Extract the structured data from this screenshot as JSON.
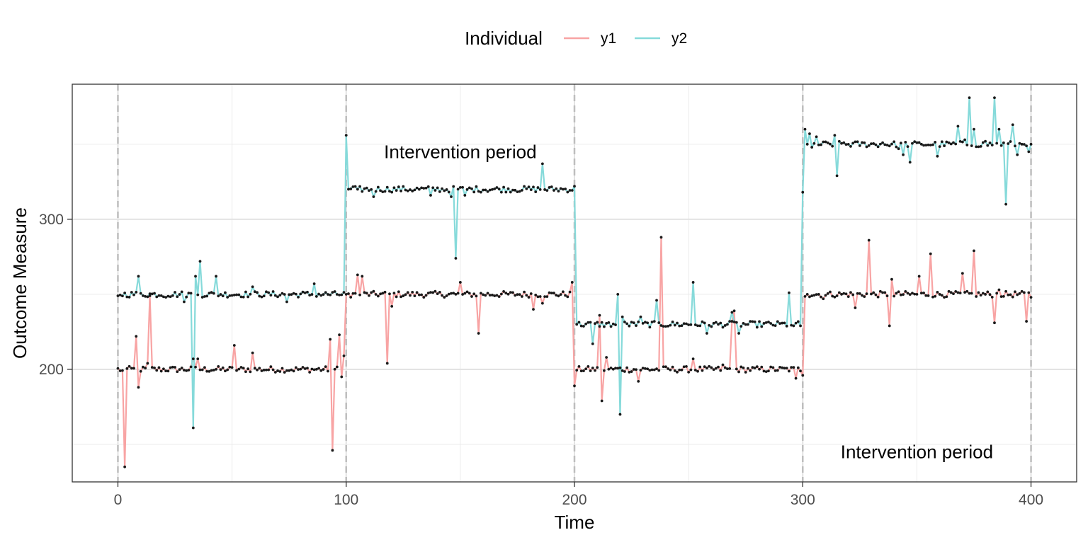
{
  "chart_data": {
    "type": "line",
    "xlabel": "Time",
    "ylabel": "Outcome Measure",
    "xlim": [
      -20,
      420
    ],
    "ylim": [
      125,
      390
    ],
    "x_ticks": [
      0,
      100,
      200,
      300,
      400
    ],
    "y_ticks": [
      200,
      300
    ],
    "grid": true,
    "legend": {
      "title": "Individual",
      "position": "top",
      "entries": [
        {
          "label": "y1",
          "color": "#F8A4A4"
        },
        {
          "label": "y2",
          "color": "#86DADA"
        }
      ]
    },
    "phase_boundaries": [
      0,
      100,
      200,
      300,
      400
    ],
    "annotations": [
      {
        "text": "Intervention period",
        "x": 150,
        "y": 345
      },
      {
        "text": "Intervention period",
        "x": 350,
        "y": 145
      }
    ],
    "phases": [
      {
        "start": 0,
        "end": 100,
        "series": {
          "y1": 200,
          "y2": 250
        }
      },
      {
        "start": 100,
        "end": 200,
        "series": {
          "y1": 250,
          "y2": 320
        }
      },
      {
        "start": 200,
        "end": 300,
        "series": {
          "y1": 200,
          "y2": 230
        }
      },
      {
        "start": 300,
        "end": 400,
        "series": {
          "y1": 250,
          "y2": 350
        }
      }
    ],
    "series": [
      {
        "name": "y1",
        "color": "#F8A4A4",
        "spikes": [
          [
            1,
            199
          ],
          [
            3,
            135
          ],
          [
            8,
            222
          ],
          [
            9,
            188
          ],
          [
            13,
            204
          ],
          [
            14,
            249
          ],
          [
            33,
            207
          ],
          [
            35,
            207
          ],
          [
            51,
            216
          ],
          [
            59,
            211
          ],
          [
            93,
            220
          ],
          [
            94,
            146
          ],
          [
            97,
            223
          ],
          [
            98,
            195
          ],
          [
            99,
            209
          ],
          [
            100,
            250
          ],
          [
            105,
            263
          ],
          [
            107,
            262
          ],
          [
            118,
            204
          ],
          [
            120,
            242
          ],
          [
            148,
            250
          ],
          [
            150,
            258
          ],
          [
            158,
            224
          ],
          [
            182,
            240
          ],
          [
            186,
            244
          ],
          [
            199,
            258
          ],
          [
            200,
            189
          ],
          [
            211,
            236
          ],
          [
            212,
            179
          ],
          [
            214,
            208
          ],
          [
            220,
            201
          ],
          [
            228,
            192
          ],
          [
            238,
            288
          ],
          [
            252,
            207
          ],
          [
            265,
            203
          ],
          [
            269,
            232
          ],
          [
            270,
            239
          ],
          [
            297,
            194
          ],
          [
            300,
            196
          ],
          [
            302,
            250
          ],
          [
            309,
            247
          ],
          [
            323,
            241
          ],
          [
            329,
            286
          ],
          [
            338,
            229
          ],
          [
            339,
            260
          ],
          [
            351,
            262
          ],
          [
            356,
            277
          ],
          [
            370,
            264
          ],
          [
            375,
            279
          ],
          [
            384,
            231
          ],
          [
            386,
            253
          ],
          [
            398,
            232
          ],
          [
            400,
            248
          ]
        ]
      },
      {
        "name": "y2",
        "color": "#86DADA",
        "spikes": [
          [
            0,
            249
          ],
          [
            9,
            262
          ],
          [
            21,
            248
          ],
          [
            29,
            245
          ],
          [
            33,
            161
          ],
          [
            34,
            262
          ],
          [
            36,
            272
          ],
          [
            43,
            262
          ],
          [
            59,
            255
          ],
          [
            74,
            245
          ],
          [
            86,
            257
          ],
          [
            100,
            356
          ],
          [
            101,
            320
          ],
          [
            105,
            320
          ],
          [
            112,
            315
          ],
          [
            137,
            316
          ],
          [
            146,
            315
          ],
          [
            148,
            274
          ],
          [
            152,
            316
          ],
          [
            186,
            337
          ],
          [
            200,
            322
          ],
          [
            201,
            230
          ],
          [
            208,
            217
          ],
          [
            219,
            250
          ],
          [
            220,
            170
          ],
          [
            221,
            235
          ],
          [
            226,
            231
          ],
          [
            229,
            235
          ],
          [
            236,
            246
          ],
          [
            252,
            258
          ],
          [
            258,
            224
          ],
          [
            269,
            238
          ],
          [
            272,
            224
          ],
          [
            294,
            251
          ],
          [
            296,
            229
          ],
          [
            299,
            229
          ],
          [
            300,
            318
          ],
          [
            301,
            360
          ],
          [
            302,
            350
          ],
          [
            303,
            357
          ],
          [
            304,
            348
          ],
          [
            306,
            355
          ],
          [
            314,
            356
          ],
          [
            315,
            329
          ],
          [
            318,
            351
          ],
          [
            335,
            351
          ],
          [
            342,
            347
          ],
          [
            344,
            343
          ],
          [
            347,
            338
          ],
          [
            352,
            350
          ],
          [
            359,
            342
          ],
          [
            368,
            362
          ],
          [
            371,
            353
          ],
          [
            373,
            381
          ],
          [
            375,
            360
          ],
          [
            380,
            352
          ],
          [
            384,
            381
          ],
          [
            386,
            360
          ],
          [
            389,
            310
          ],
          [
            392,
            363
          ],
          [
            394,
            343
          ],
          [
            396,
            350
          ],
          [
            399,
            345
          ],
          [
            400,
            350
          ]
        ]
      }
    ]
  }
}
